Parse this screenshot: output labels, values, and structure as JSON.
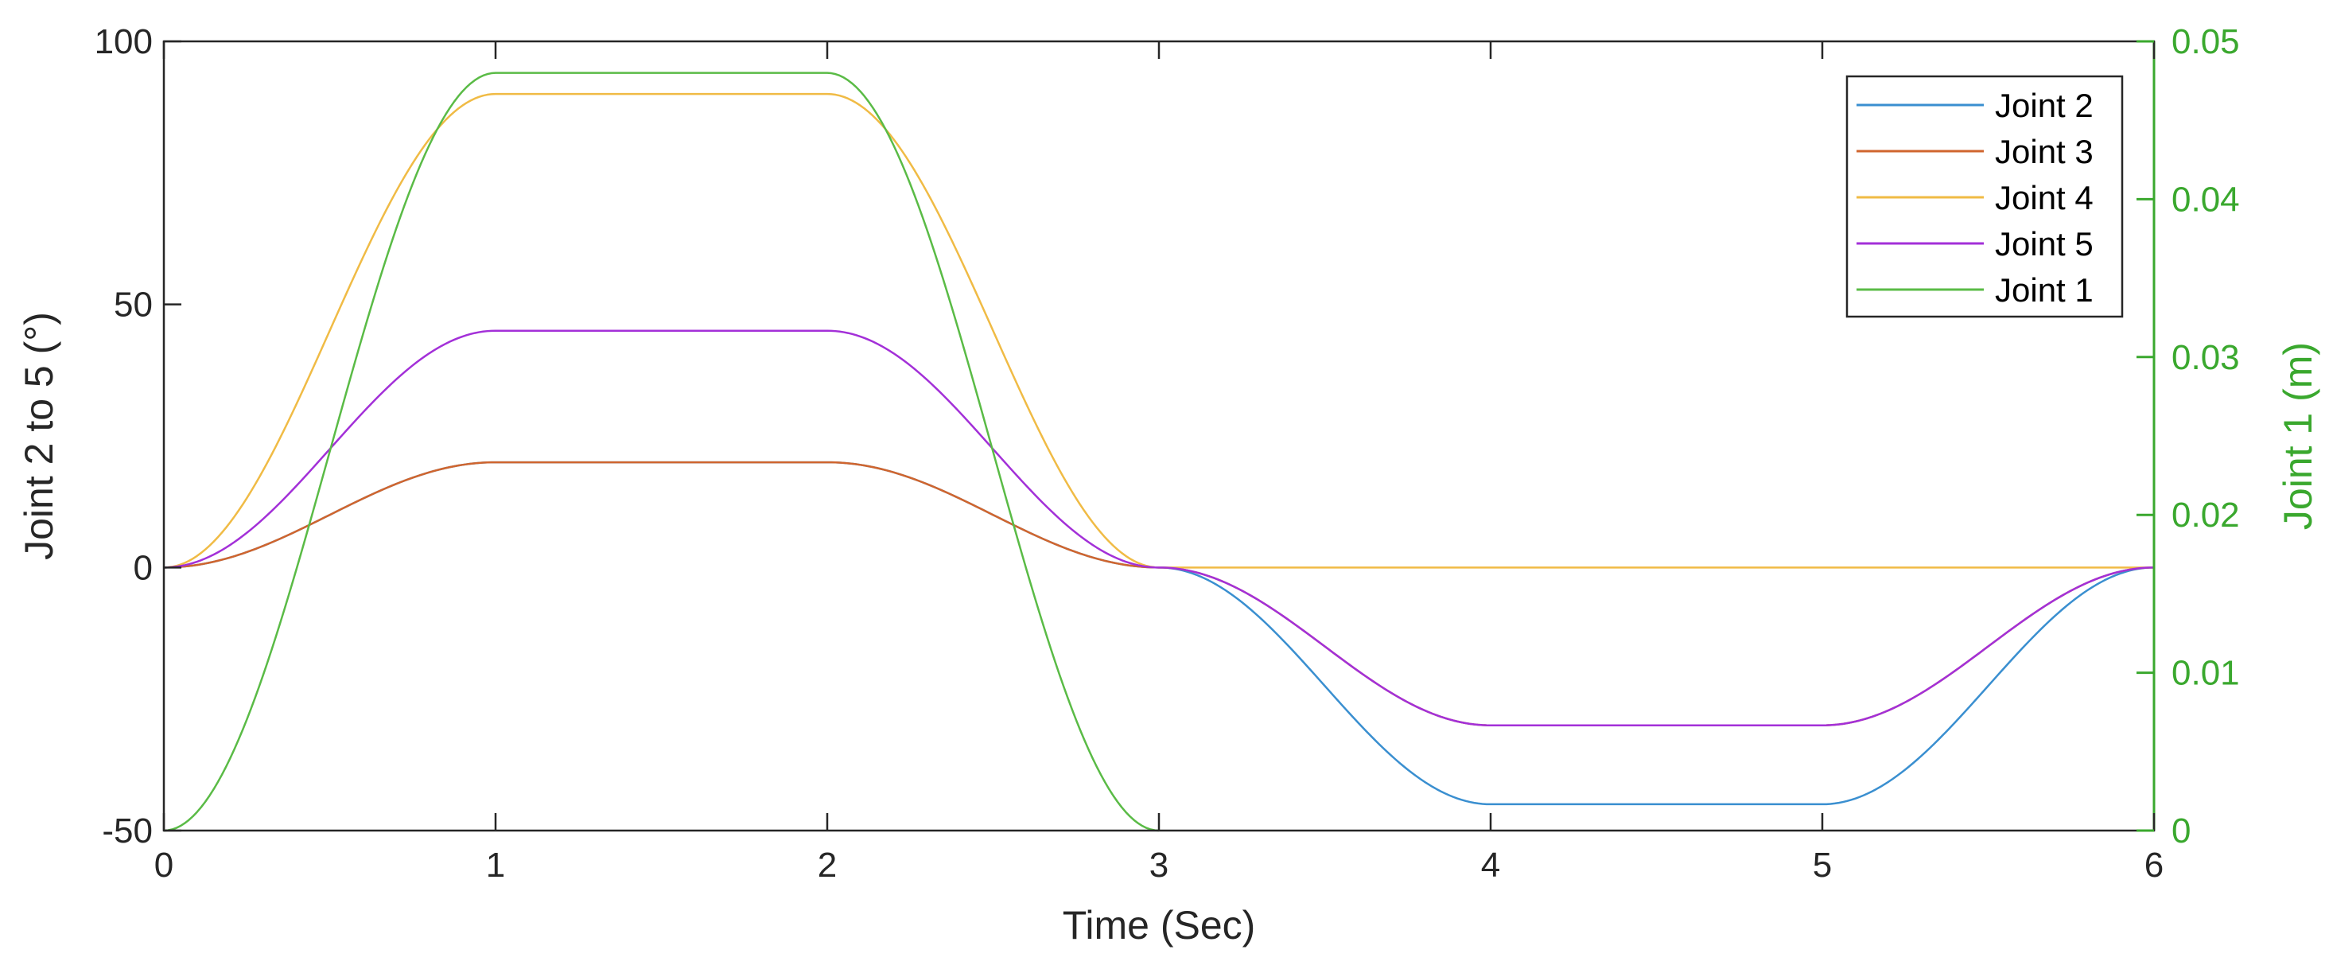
{
  "chart_data": {
    "type": "line",
    "xlabel": "Time (Sec)",
    "ylabel_left": "Joint 2 to 5 (°)",
    "ylabel_right": "Joint 1 (m)",
    "xlim": [
      0,
      6
    ],
    "ylim_left": [
      -50,
      100
    ],
    "ylim_right": [
      0,
      0.05
    ],
    "x_ticks": [
      "0",
      "1",
      "2",
      "3",
      "4",
      "5",
      "6"
    ],
    "y_left_ticks": [
      "-50",
      "0",
      "50",
      "100"
    ],
    "y_right_ticks": [
      "0",
      "0.01",
      "0.02",
      "0.03",
      "0.04",
      "0.05"
    ],
    "grid": false,
    "legend_position": "top-right",
    "colors": {
      "joint2": "#3a8fd0",
      "joint3": "#d0652e",
      "joint4": "#f0bb45",
      "joint5": "#a330d8",
      "joint1": "#5abb46",
      "right_axis": "#3aa82e"
    },
    "series": [
      {
        "name": "Joint 2",
        "axis": "left",
        "color": "#3a8fd0",
        "segments": [
          [
            0,
            0
          ],
          [
            1,
            20
          ],
          [
            2,
            20
          ],
          [
            3,
            0
          ],
          [
            4,
            -45
          ],
          [
            5,
            -45
          ],
          [
            6,
            0
          ]
        ]
      },
      {
        "name": "Joint 3",
        "axis": "left",
        "color": "#d0652e",
        "segments": [
          [
            0,
            0
          ],
          [
            1,
            20
          ],
          [
            2,
            20
          ],
          [
            3,
            0
          ],
          [
            4,
            -30
          ],
          [
            5,
            -30
          ],
          [
            6,
            0
          ]
        ]
      },
      {
        "name": "Joint 4",
        "axis": "left",
        "color": "#f0bb45",
        "segments": [
          [
            0,
            0
          ],
          [
            1,
            90
          ],
          [
            2,
            90
          ],
          [
            3,
            0
          ],
          [
            6,
            0
          ]
        ]
      },
      {
        "name": "Joint 5",
        "axis": "left",
        "color": "#a330d8",
        "segments": [
          [
            0,
            0
          ],
          [
            1,
            45
          ],
          [
            2,
            45
          ],
          [
            3,
            0
          ],
          [
            4,
            -30
          ],
          [
            5,
            -30
          ],
          [
            6,
            0
          ]
        ]
      },
      {
        "name": "Joint 1",
        "axis": "right",
        "color": "#5abb46",
        "segments": [
          [
            0,
            0
          ],
          [
            1,
            0.048
          ],
          [
            2,
            0.048
          ],
          [
            3,
            0
          ]
        ]
      }
    ]
  }
}
